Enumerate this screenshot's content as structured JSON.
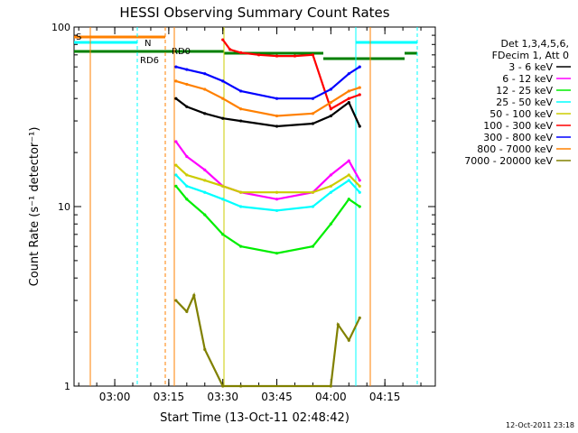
{
  "chart_data": {
    "type": "line",
    "title": "HESSI Observing Summary Count Rates",
    "xlabel": "Start Time (13-Oct-11 02:48:42)",
    "ylabel": "Count Rate (s⁻¹ detector⁻¹)",
    "y_scale": "log",
    "ylim": [
      1,
      100
    ],
    "xlim": [
      "02:48:42",
      "04:29:00"
    ],
    "x_ticks": [
      "03:00",
      "03:15",
      "03:30",
      "03:45",
      "04:00",
      "04:15"
    ],
    "y_ticks": [
      "1",
      "10",
      "100"
    ],
    "grid": false,
    "legend_position": "right",
    "legend_header": [
      "Det 1,3,4,5,6,",
      "FDecim 1, Att 0"
    ],
    "series": [
      {
        "name": "3 - 6 keV",
        "color": "#000000",
        "x": [
          "03:17",
          "03:20",
          "03:25",
          "03:30",
          "03:35",
          "03:45",
          "03:55",
          "04:00",
          "04:05",
          "04:08"
        ],
        "y": [
          40,
          36,
          33,
          31,
          30,
          28,
          29,
          32,
          38,
          28
        ]
      },
      {
        "name": "6 - 12 keV",
        "color": "#ff00ff",
        "x": [
          "03:17",
          "03:20",
          "03:25",
          "03:30",
          "03:35",
          "03:45",
          "03:55",
          "04:00",
          "04:05",
          "04:08"
        ],
        "y": [
          23,
          19,
          16,
          13,
          12,
          11,
          12,
          15,
          18,
          14
        ]
      },
      {
        "name": "12 - 25 keV",
        "color": "#00ee00",
        "x": [
          "03:17",
          "03:20",
          "03:25",
          "03:30",
          "03:35",
          "03:45",
          "03:55",
          "04:00",
          "04:05",
          "04:08"
        ],
        "y": [
          13,
          11,
          9,
          7,
          6,
          5.5,
          6,
          8,
          11,
          10
        ]
      },
      {
        "name": "25 - 50 keV",
        "color": "#00ffff",
        "x": [
          "03:17",
          "03:20",
          "03:25",
          "03:30",
          "03:35",
          "03:45",
          "03:55",
          "04:00",
          "04:05",
          "04:08"
        ],
        "y": [
          15,
          13,
          12,
          11,
          10,
          9.5,
          10,
          12,
          14,
          12
        ]
      },
      {
        "name": "50 - 100 keV",
        "color": "#cccc00",
        "x": [
          "03:17",
          "03:20",
          "03:25",
          "03:30",
          "03:35",
          "03:45",
          "03:55",
          "04:00",
          "04:05",
          "04:08"
        ],
        "y": [
          17,
          15,
          14,
          13,
          12,
          12,
          12,
          13,
          15,
          13
        ]
      },
      {
        "name": "100 - 300 keV",
        "color": "#ff0000",
        "x": [
          "03:30",
          "03:32",
          "03:35",
          "03:40",
          "03:45",
          "03:50",
          "03:55",
          "04:00",
          "04:05",
          "04:08"
        ],
        "y": [
          85,
          75,
          72,
          70,
          69,
          69,
          70,
          35,
          40,
          42
        ]
      },
      {
        "name": "300 - 800 keV",
        "color": "#0000ff",
        "x": [
          "03:17",
          "03:20",
          "03:25",
          "03:30",
          "03:35",
          "03:45",
          "03:55",
          "04:00",
          "04:05",
          "04:08"
        ],
        "y": [
          60,
          58,
          55,
          50,
          44,
          40,
          40,
          45,
          55,
          60
        ]
      },
      {
        "name": "800 - 7000 keV",
        "color": "#ff8000",
        "x": [
          "03:17",
          "03:20",
          "03:25",
          "03:30",
          "03:35",
          "03:45",
          "03:55",
          "04:00",
          "04:05",
          "04:08"
        ],
        "y": [
          50,
          48,
          45,
          40,
          35,
          32,
          33,
          38,
          44,
          46
        ]
      },
      {
        "name": "7000 - 20000 keV",
        "color": "#808000",
        "x": [
          "03:17",
          "03:20",
          "03:22",
          "03:25",
          "03:30",
          "03:35",
          "04:00",
          "04:02",
          "04:05",
          "04:08"
        ],
        "y": [
          3.0,
          2.6,
          3.2,
          1.6,
          1.0,
          1.0,
          1.0,
          2.2,
          1.8,
          2.4
        ]
      }
    ],
    "flags": [
      {
        "label": "S",
        "color": "#ff8000"
      },
      {
        "label": "N",
        "color": "#00ffff"
      },
      {
        "label": "RD0",
        "color": "#008000"
      },
      {
        "label": "RD6",
        "color": "#008000"
      }
    ]
  },
  "footer": {
    "timestamp": "12-Oct-2011 23:18"
  }
}
